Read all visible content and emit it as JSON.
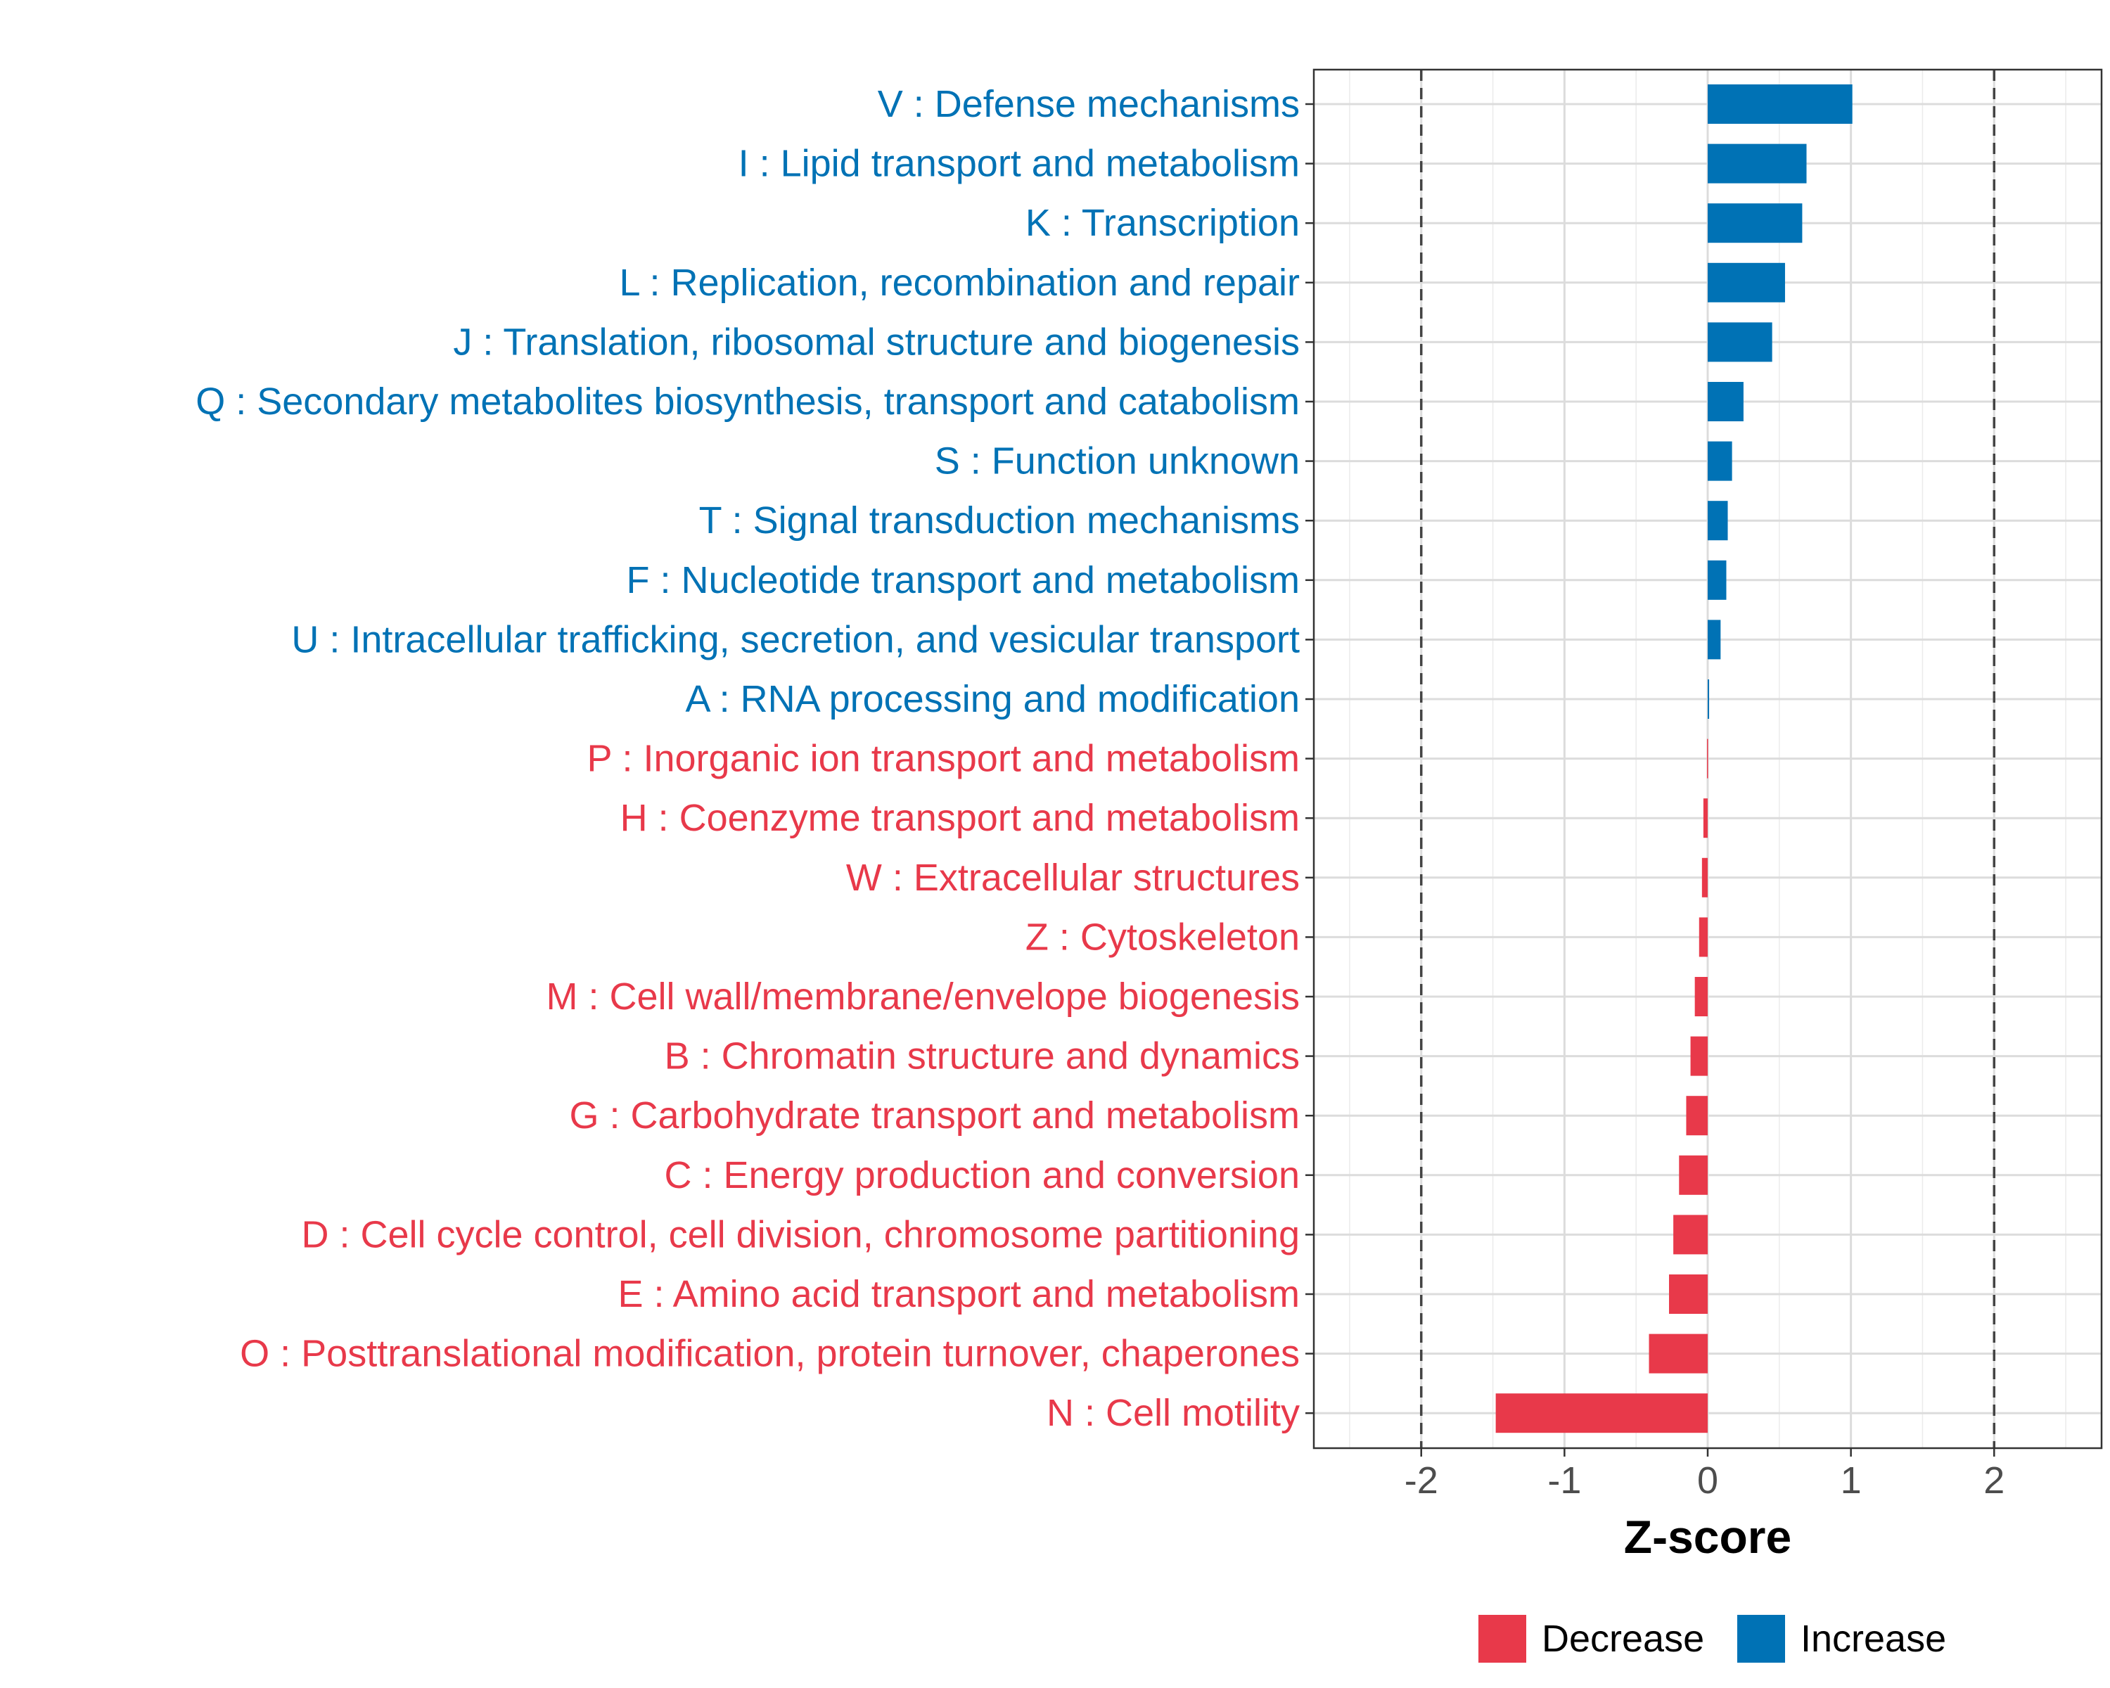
{
  "chart_data": {
    "type": "bar",
    "orientation": "horizontal",
    "title": "",
    "xlabel": "Z-score",
    "ylabel": "",
    "xlim": [
      -2.75,
      2.75
    ],
    "xticks": [
      -2,
      -1,
      0,
      1,
      2
    ],
    "xtick_labels": [
      "-2",
      "-1",
      "0",
      "1",
      "2"
    ],
    "threshold_lines": [
      -2,
      2
    ],
    "grid": true,
    "colors": {
      "Increase": "#0072b5",
      "Decrease": "#e8394a"
    },
    "categories": [
      "V : Defense mechanisms",
      "I : Lipid transport and metabolism",
      "K : Transcription",
      "L : Replication, recombination and repair",
      "J : Translation, ribosomal structure and biogenesis",
      "Q : Secondary metabolites biosynthesis, transport and catabolism",
      "S : Function unknown",
      "T : Signal transduction mechanisms",
      "F : Nucleotide transport and metabolism",
      "U : Intracellular trafficking, secretion, and vesicular transport",
      "A : RNA processing and modification",
      "P : Inorganic ion transport and metabolism",
      "H : Coenzyme transport and metabolism",
      "W : Extracellular structures",
      "Z : Cytoskeleton",
      "M : Cell wall/membrane/envelope biogenesis",
      "B : Chromatin structure and dynamics",
      "G : Carbohydrate transport and metabolism",
      "C : Energy production and conversion",
      "D : Cell cycle control, cell division, chromosome partitioning",
      "E : Amino acid transport and metabolism",
      "O : Posttranslational modification, protein turnover, chaperones",
      "N : Cell motility"
    ],
    "values": [
      1.01,
      0.69,
      0.66,
      0.54,
      0.45,
      0.25,
      0.17,
      0.14,
      0.13,
      0.09,
      0.01,
      -0.005,
      -0.03,
      -0.04,
      -0.06,
      -0.09,
      -0.12,
      -0.15,
      -0.2,
      -0.24,
      -0.27,
      -0.41,
      -1.48
    ],
    "groups": [
      "Increase",
      "Increase",
      "Increase",
      "Increase",
      "Increase",
      "Increase",
      "Increase",
      "Increase",
      "Increase",
      "Increase",
      "Increase",
      "Decrease",
      "Decrease",
      "Decrease",
      "Decrease",
      "Decrease",
      "Decrease",
      "Decrease",
      "Decrease",
      "Decrease",
      "Decrease",
      "Decrease",
      "Decrease"
    ],
    "legend": {
      "position": "bottom",
      "entries": [
        "Decrease",
        "Increase"
      ]
    }
  }
}
